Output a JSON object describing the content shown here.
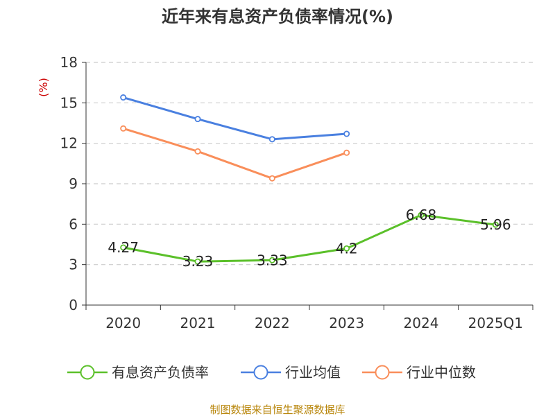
{
  "title": "近年来有息资产负债率情况(%)",
  "y_unit": "(%)",
  "source": "制图数据来自恒生聚源数据库",
  "colors": {
    "debt_ratio": "#5bc02a",
    "industry_avg": "#4a80e0",
    "industry_median": "#f98e5a",
    "grid": "#cccccc",
    "axis": "#333333"
  },
  "chart_data": {
    "type": "line",
    "categories": [
      "2020",
      "2021",
      "2022",
      "2023",
      "2024",
      "2025Q1"
    ],
    "ylim": [
      0,
      18
    ],
    "yticks": [
      0,
      3,
      6,
      9,
      12,
      15,
      18
    ],
    "grid": true,
    "legend": "bottom",
    "series": [
      {
        "name": "有息资产负债率",
        "color": "#5bc02a",
        "values": [
          4.27,
          3.23,
          3.33,
          4.2,
          6.68,
          5.96
        ],
        "labels": [
          "4.27",
          "3.23",
          "3.33",
          "4.2",
          "6.68",
          "5.96"
        ]
      },
      {
        "name": "行业均值",
        "color": "#4a80e0",
        "values": [
          15.4,
          13.8,
          12.3,
          12.7,
          null,
          null
        ]
      },
      {
        "name": "行业中位数",
        "color": "#f98e5a",
        "values": [
          13.1,
          11.4,
          9.4,
          11.3,
          null,
          null
        ]
      }
    ]
  }
}
